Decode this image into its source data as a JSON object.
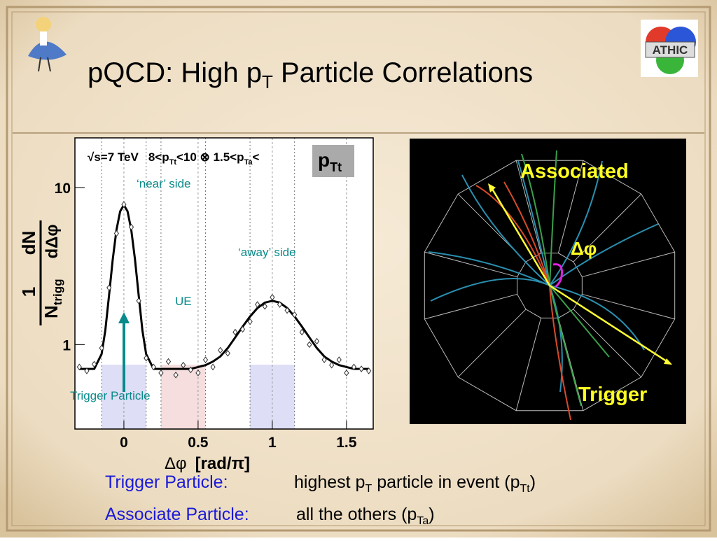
{
  "title": {
    "main": "pQCD: High p",
    "sub": "T",
    "rest": " Particle Correlations"
  },
  "chart_data": {
    "type": "scatter",
    "xlim": [
      -0.33,
      1.68
    ],
    "ylim": [
      0.29,
      20.7
    ],
    "yscale": "log",
    "xticks": [
      0,
      0.5,
      1,
      1.5
    ],
    "yticks": [
      1,
      10
    ],
    "x_label": {
      "symbol": "Δφ",
      "unit": "[rad/π]"
    },
    "y_label": {
      "numerator": "1",
      "denominator": "N",
      "denominator_sub": "trigg",
      "d_numerator": "dN",
      "d_denominator": "dΔφ"
    },
    "header": {
      "energy": "√s=7 TeV",
      "trigger_cut_a": "8<p",
      "trigger_cut_sub": "Tt",
      "trigger_cut_b": "<10 ⊗ 1.5<p",
      "assoc_cut_sub": "Ta",
      "assoc_cut_b": "<",
      "box": "p",
      "box_sub": "Tt"
    },
    "annotations": {
      "near": "‘near’ side",
      "away": "‘away’ side",
      "ue": "UE",
      "trigger": "Trigger  Particle"
    },
    "regions": [
      {
        "x": [
          -0.15,
          0.15
        ],
        "color": "#c8c8f0"
      },
      {
        "x": [
          0.25,
          0.55
        ],
        "color": "#f0c8c8"
      },
      {
        "x": [
          0.85,
          1.15
        ],
        "color": "#c8c8f0"
      }
    ],
    "points": {
      "x": [
        -0.3,
        -0.25,
        -0.2,
        -0.15,
        -0.1,
        -0.05,
        0,
        0.05,
        0.1,
        0.15,
        0.2,
        0.25,
        0.3,
        0.35,
        0.4,
        0.45,
        0.5,
        0.55,
        0.6,
        0.65,
        0.7,
        0.75,
        0.8,
        0.85,
        0.9,
        0.95,
        1,
        1.05,
        1.1,
        1.15,
        1.2,
        1.25,
        1.3,
        1.35,
        1.4,
        1.45,
        1.5,
        1.55,
        1.6,
        1.65
      ],
      "values": [
        0.72,
        0.68,
        0.75,
        0.95,
        2.3,
        5.1,
        7.8,
        5.6,
        1.9,
        0.82,
        0.72,
        0.66,
        0.78,
        0.64,
        0.74,
        0.69,
        0.66,
        0.8,
        0.72,
        0.92,
        0.88,
        1.2,
        1.25,
        1.4,
        1.8,
        1.75,
        2.0,
        1.8,
        1.65,
        1.55,
        1.2,
        1.0,
        1.05,
        0.8,
        0.74,
        0.8,
        0.66,
        0.72,
        0.7,
        0.68
      ]
    },
    "fit": {
      "x": [
        -0.3,
        -0.25,
        -0.2,
        -0.15,
        -0.125,
        -0.1,
        -0.075,
        -0.05,
        -0.025,
        0,
        0.025,
        0.05,
        0.075,
        0.1,
        0.125,
        0.15,
        0.2,
        0.25,
        0.3,
        0.35,
        0.4,
        0.45,
        0.5,
        0.55,
        0.6,
        0.65,
        0.7,
        0.75,
        0.8,
        0.85,
        0.9,
        0.95,
        1,
        1.05,
        1.1,
        1.15,
        1.2,
        1.25,
        1.3,
        1.35,
        1.4,
        1.45,
        1.5,
        1.55,
        1.6,
        1.65
      ],
      "values": [
        0.7,
        0.7,
        0.7,
        0.87,
        1.23,
        2.05,
        3.48,
        5.36,
        7.05,
        7.74,
        7.05,
        5.36,
        3.48,
        2.05,
        1.23,
        0.87,
        0.7,
        0.7,
        0.7,
        0.7,
        0.7,
        0.7,
        0.72,
        0.74,
        0.78,
        0.84,
        0.95,
        1.11,
        1.3,
        1.51,
        1.71,
        1.85,
        1.9,
        1.85,
        1.71,
        1.51,
        1.3,
        1.11,
        0.95,
        0.84,
        0.78,
        0.74,
        0.72,
        0.7,
        0.7,
        0.7
      ]
    }
  },
  "event_display": {
    "associated": "Associated",
    "delta_phi": "Δφ",
    "trigger": "Trigger"
  },
  "footer": {
    "line1": {
      "label": "Trigger  Particle:",
      "text_a": "highest p",
      "sub_a": "T",
      "text_b": " particle in event (p",
      "sub_b": "Tt",
      "text_c": ")"
    },
    "line2": {
      "label": "Associate Particle:",
      "text_a": "all the others (p",
      "sub_a": "Ta",
      "text_c": ")"
    }
  }
}
